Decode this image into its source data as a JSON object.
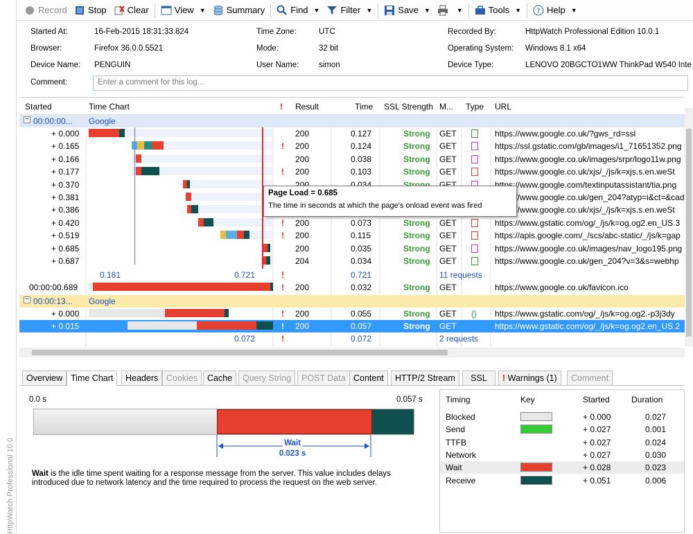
{
  "app": {
    "vertical_title": "HttpWatch Professional 10.0"
  },
  "toolbar": {
    "record": "Record",
    "stop": "Stop",
    "clear": "Clear",
    "view": "View",
    "summary": "Summary",
    "find": "Find",
    "filter": "Filter",
    "save": "Save",
    "tools": "Tools",
    "help": "Help"
  },
  "info": {
    "started_at_label": "Started At:",
    "started_at": "16-Feb-2015 18:31:33.824",
    "browser_label": "Browser:",
    "browser": "Firefox 36.0.0.5521",
    "device_name_label": "Device Name:",
    "device_name": "PENGUIN",
    "timezone_label": "Time Zone:",
    "timezone": "UTC",
    "mode_label": "Mode:",
    "mode": "32 bit",
    "user_label": "User Name:",
    "user": "simon",
    "recorded_by_label": "Recorded By:",
    "recorded_by": "HttpWatch Professional Edition 10.0.1",
    "os_label": "Operating System:",
    "os": "Windows 8.1 x64",
    "device_type_label": "Device Type:",
    "device_type": "LENOVO 20BGCTO1WW ThinkPad W540 Intel",
    "comment_label": "Comment:",
    "comment_placeholder": "Enter a comment for this log..."
  },
  "grid": {
    "headers": {
      "started": "Started",
      "timechart": "Time Chart",
      "warn": "!",
      "result": "Result",
      "time": "Time",
      "ssl": "SSL Strength",
      "method": "M...",
      "type": "Type",
      "url": "URL"
    },
    "group1": {
      "started": "00:00:00...",
      "name": "Google"
    },
    "rows": [
      {
        "started": "+ 0.000",
        "warn": "",
        "result": "200",
        "time": "0.127",
        "ssl": "Strong",
        "method": "GET",
        "url": "https://www.google.co.uk/?gws_rd=ssl"
      },
      {
        "started": "+ 0.165",
        "warn": "!",
        "result": "200",
        "time": "0.124",
        "ssl": "Strong",
        "method": "GET",
        "url": "https://ssl.gstatic.com/gb/images/i1_71651352.png"
      },
      {
        "started": "+ 0.166",
        "warn": "",
        "result": "200",
        "time": "0.038",
        "ssl": "Strong",
        "method": "GET",
        "url": "https://www.google.co.uk/images/srpr/logo11w.png"
      },
      {
        "started": "+ 0.177",
        "warn": "!",
        "result": "200",
        "time": "0.103",
        "ssl": "Strong",
        "method": "GET",
        "url": "https://www.google.co.uk/xjs/_/js/k=xjs.s.en.weSt"
      },
      {
        "started": "+ 0.370",
        "warn": "",
        "result": "200",
        "time": "0.034",
        "ssl": "Strong",
        "method": "GET",
        "url": "https://www.google.com/textinputassistant/tia.png"
      },
      {
        "started": "+ 0.381",
        "warn": "",
        "result": "",
        "time": "",
        "ssl": "",
        "method": "",
        "url": "https://www.google.co.uk/gen_204?atyp=i&ct=&cad"
      },
      {
        "started": "+ 0.386",
        "warn": "",
        "result": "",
        "time": "",
        "ssl": "",
        "method": "",
        "url": "https://www.google.co.uk/xjs/_/js/k=xjs.s.en.weSt"
      },
      {
        "started": "+ 0.420",
        "warn": "!",
        "result": "200",
        "time": "0.073",
        "ssl": "Strong",
        "method": "GET",
        "url": "https://www.gstatic.com/og/_/js/k=og.og2.en_US.3"
      },
      {
        "started": "+ 0.519",
        "warn": "!",
        "result": "200",
        "time": "0.115",
        "ssl": "Strong",
        "method": "GET",
        "url": "https://apis.google.com/_/scs/abc-static/_/js/k=gap"
      },
      {
        "started": "+ 0.685",
        "warn": "",
        "result": "200",
        "time": "0.035",
        "ssl": "Strong",
        "method": "GET",
        "url": "https://www.google.co.uk/images/nav_logo195.png"
      },
      {
        "started": "+ 0.687",
        "warn": "",
        "result": "204",
        "time": "0.034",
        "ssl": "Strong",
        "method": "GET",
        "url": "https://www.google.co.uk/gen_204?v=3&s=webhp"
      }
    ],
    "summary1": {
      "left": "0.181",
      "right": "0.721",
      "warn": "!",
      "time": "0.721",
      "requests": "11 requests"
    },
    "favicon": {
      "started": "00:00:00.689",
      "warn": "!",
      "result": "200",
      "time": "0.032",
      "ssl": "Strong",
      "method": "GET",
      "url": "https://www.google.co.uk/favicon.ico"
    },
    "group2": {
      "started": "00:00:13...",
      "name": "Google"
    },
    "rows2": [
      {
        "started": "+ 0.000",
        "warn": "!",
        "result": "200",
        "time": "0.055",
        "ssl": "Strong",
        "method": "GET",
        "url": "https://www.gstatic.com/og/_/js/k=og.og2.-p3j3dy"
      },
      {
        "started": "+ 0.015",
        "warn": "!",
        "result": "200",
        "time": "0.057",
        "ssl": "Strong",
        "method": "GET",
        "url": "https://www.gstatic.com/og/_/js/k=og.og2.en_US.2"
      }
    ],
    "summary2": {
      "right": "0.072",
      "warn": "!",
      "time": "0.072",
      "requests": "2 requests"
    }
  },
  "tooltip": {
    "title": "Page Load = 0.685",
    "text": "The time in seconds at which the page's onload event was fired"
  },
  "tabs": [
    "Overview",
    "Time Chart",
    "Headers",
    "Cookies",
    "Cache",
    "Query String",
    "POST Data",
    "Content",
    "HTTP/2 Stream",
    "SSL",
    "Warnings (1)",
    "Comment"
  ],
  "detail": {
    "start": "0.0 s",
    "end": "0.057 s",
    "wait_label": "Wait",
    "wait_value": "0.023 s",
    "desc_bold": "Wait",
    "desc": " is the idle time spent waiting for a response message from the server. This value includes delays introduced due to network latency and the time required to process the request on the web server."
  },
  "timing": {
    "headers": {
      "timing": "Timing",
      "key": "Key",
      "started": "Started",
      "duration": "Duration"
    },
    "rows": [
      {
        "name": "Blocked",
        "started": "+ 0.000",
        "duration": "0.027",
        "color": "#e8e8e8"
      },
      {
        "name": "Send",
        "started": "+ 0.027",
        "duration": "0.001",
        "color": "#33cc33"
      },
      {
        "name": "TTFB",
        "started": "+ 0.027",
        "duration": "0.024",
        "color": ""
      },
      {
        "name": "Network",
        "started": "+ 0.027",
        "duration": "0.030",
        "color": ""
      },
      {
        "name": "Wait",
        "started": "+ 0.028",
        "duration": "0.023",
        "color": "#e84030"
      },
      {
        "name": "Receive",
        "started": "+ 0.051",
        "duration": "0.006",
        "color": "#105050"
      }
    ]
  }
}
